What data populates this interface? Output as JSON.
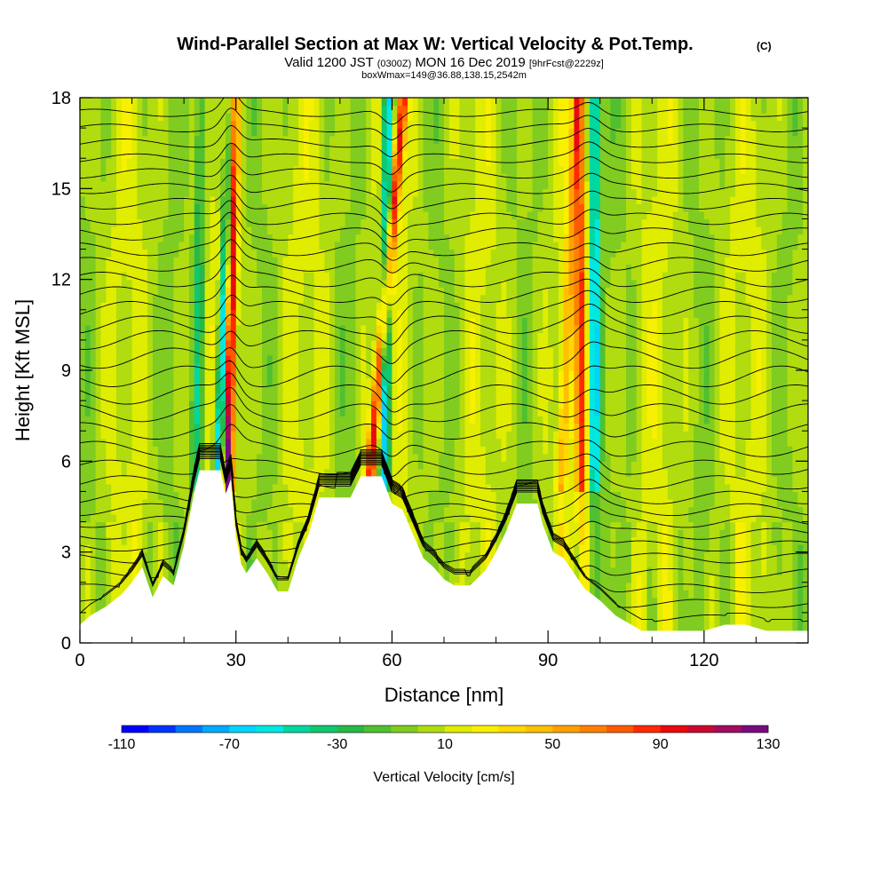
{
  "header": {
    "title": "Wind-Parallel Section at Max W: Vertical Velocity & Pot.Temp.",
    "copyright": "(C)",
    "valid_prefix": "Valid 1200 JST",
    "utc": "(0300Z)",
    "valid_date": "MON 16 Dec 2019",
    "forecast": "[9hrFcst@2229z]",
    "box_info": "boxWmax=149@36.88,138.15,2542m"
  },
  "chart_data": {
    "type": "heatmap",
    "xlabel": "Distance [nm]",
    "ylabel": "Height [Kft MSL]",
    "xlim": [
      0,
      140
    ],
    "ylim": [
      0,
      18
    ],
    "x_ticks": [
      0,
      30,
      60,
      90,
      120
    ],
    "y_ticks": [
      0,
      3,
      6,
      9,
      12,
      15,
      18
    ],
    "colorbar": {
      "label": "Vertical Velocity [cm/s]",
      "min": -110,
      "max": 130,
      "step": 10,
      "tick_labels": [
        "-110",
        "-70",
        "-30",
        "10",
        "50",
        "90",
        "130"
      ],
      "colors": [
        "#0000ff",
        "#0033ff",
        "#0077ff",
        "#00aaff",
        "#00d4ff",
        "#00e8e0",
        "#00d8a0",
        "#10c870",
        "#28b848",
        "#50c030",
        "#80cc20",
        "#b0dc10",
        "#e0ec00",
        "#f8f000",
        "#ffd800",
        "#ffc000",
        "#ffa000",
        "#ff8000",
        "#ff5a00",
        "#ff2a00",
        "#e80a10",
        "#c80830",
        "#a00c60",
        "#7a0a80"
      ]
    },
    "terrain_kft": [
      [
        0,
        0.6
      ],
      [
        2,
        0.9
      ],
      [
        5,
        1.2
      ],
      [
        8,
        1.6
      ],
      [
        10,
        2.0
      ],
      [
        12,
        2.5
      ],
      [
        14,
        1.5
      ],
      [
        16,
        2.2
      ],
      [
        18,
        1.9
      ],
      [
        20,
        3.2
      ],
      [
        22,
        5.0
      ],
      [
        23,
        5.7
      ],
      [
        27,
        5.7
      ],
      [
        28,
        4.9
      ],
      [
        29,
        5.4
      ],
      [
        30,
        3.5
      ],
      [
        31,
        2.6
      ],
      [
        32,
        2.3
      ],
      [
        34,
        2.8
      ],
      [
        36,
        2.3
      ],
      [
        38,
        1.7
      ],
      [
        40,
        1.7
      ],
      [
        42,
        2.8
      ],
      [
        44,
        3.6
      ],
      [
        46,
        4.8
      ],
      [
        52,
        4.8
      ],
      [
        54,
        5.5
      ],
      [
        58,
        5.5
      ],
      [
        60,
        4.6
      ],
      [
        62,
        4.4
      ],
      [
        64,
        3.6
      ],
      [
        66,
        2.8
      ],
      [
        68,
        2.5
      ],
      [
        70,
        2.1
      ],
      [
        72,
        1.9
      ],
      [
        75,
        1.9
      ],
      [
        78,
        2.4
      ],
      [
        80,
        3.0
      ],
      [
        82,
        3.7
      ],
      [
        84,
        4.6
      ],
      [
        88,
        4.6
      ],
      [
        89,
        3.9
      ],
      [
        91,
        3.0
      ],
      [
        93,
        2.8
      ],
      [
        95,
        2.3
      ],
      [
        97,
        1.8
      ],
      [
        100,
        1.4
      ],
      [
        103,
        0.9
      ],
      [
        106,
        0.6
      ],
      [
        108,
        0.4
      ],
      [
        112,
        0.4
      ],
      [
        120,
        0.4
      ],
      [
        124,
        0.6
      ],
      [
        128,
        0.6
      ],
      [
        132,
        0.4
      ],
      [
        140,
        0.4
      ]
    ],
    "updraft_bands": [
      {
        "x_bottom": 28.5,
        "x_top": 29.6,
        "w": 120
      },
      {
        "x_bottom": 55.5,
        "x_top": 62.2,
        "w": 90
      },
      {
        "x_bottom": 96.5,
        "x_top": 96.0,
        "w": 70
      },
      {
        "x_bottom": 92.5,
        "x_top": 95.5,
        "w": 40
      }
    ],
    "downdraft_bands": [
      {
        "x_bottom": 26.5,
        "x_top": 29.3,
        "w": -90
      },
      {
        "x_bottom": 58.6,
        "x_top": 59.2,
        "w": -80
      },
      {
        "x_bottom": 99.0,
        "x_top": 99.0,
        "w": -70
      },
      {
        "x_bottom": 22.5,
        "x_top": 23.2,
        "w": -40
      }
    ],
    "theta_contours_kft": [
      0.8,
      1.3,
      1.8,
      2.3,
      2.8,
      3.2,
      3.6,
      4.0,
      4.4,
      4.8,
      5.3,
      5.8,
      6.4,
      7.0,
      7.6,
      8.2,
      8.8,
      9.4,
      10.0,
      10.5,
      11.0,
      11.5,
      12.0,
      12.5,
      13.0,
      13.5,
      14.0,
      14.5,
      15.0,
      15.5,
      16.0,
      16.5,
      17.0,
      17.5
    ]
  }
}
